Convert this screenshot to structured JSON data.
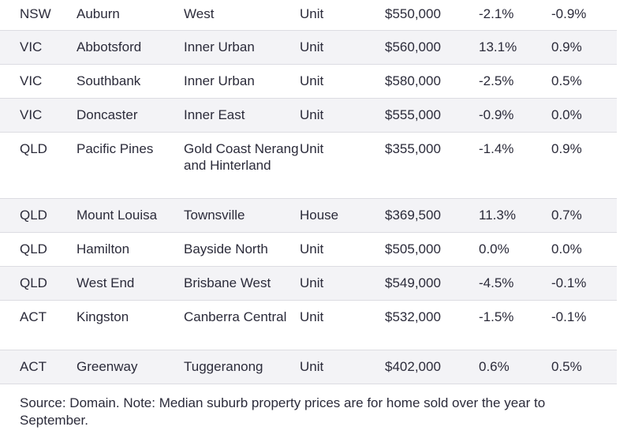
{
  "table": {
    "rows": [
      {
        "state": "NSW",
        "suburb": "Auburn",
        "region": "West",
        "type": "Unit",
        "price": "$550,000",
        "change1": "-2.1%",
        "change2": "-0.9%"
      },
      {
        "state": "VIC",
        "suburb": "Abbotsford",
        "region": "Inner Urban",
        "type": "Unit",
        "price": "$560,000",
        "change1": "13.1%",
        "change2": "0.9%"
      },
      {
        "state": "VIC",
        "suburb": "Southbank",
        "region": "Inner Urban",
        "type": "Unit",
        "price": "$580,000",
        "change1": "-2.5%",
        "change2": "0.5%"
      },
      {
        "state": "VIC",
        "suburb": "Doncaster",
        "region": "Inner East",
        "type": "Unit",
        "price": "$555,000",
        "change1": "-0.9%",
        "change2": "0.0%"
      },
      {
        "state": "QLD",
        "suburb": "Pacific Pines",
        "region": "Gold Coast Nerang and Hinterland",
        "type": "Unit",
        "price": "$355,000",
        "change1": "-1.4%",
        "change2": "0.9%"
      },
      {
        "state": "QLD",
        "suburb": "Mount Louisa",
        "region": "Townsville",
        "type": "House",
        "price": "$369,500",
        "change1": "11.3%",
        "change2": "0.7%"
      },
      {
        "state": "QLD",
        "suburb": "Hamilton",
        "region": "Bayside North",
        "type": "Unit",
        "price": "$505,000",
        "change1": "0.0%",
        "change2": "0.0%"
      },
      {
        "state": "QLD",
        "suburb": "West End",
        "region": "Brisbane West",
        "type": "Unit",
        "price": "$549,000",
        "change1": "-4.5%",
        "change2": "-0.1%"
      },
      {
        "state": "ACT",
        "suburb": "Kingston",
        "region": "Canberra Central",
        "type": "Unit",
        "price": "$532,000",
        "change1": "-1.5%",
        "change2": "-0.1%"
      },
      {
        "state": "ACT",
        "suburb": "Greenway",
        "region": "Tuggeranong",
        "type": "Unit",
        "price": "$402,000",
        "change1": "0.6%",
        "change2": "0.5%"
      }
    ]
  },
  "source_note": "Source: Domain. Note: Median suburb property prices are for home sold over the year to September."
}
